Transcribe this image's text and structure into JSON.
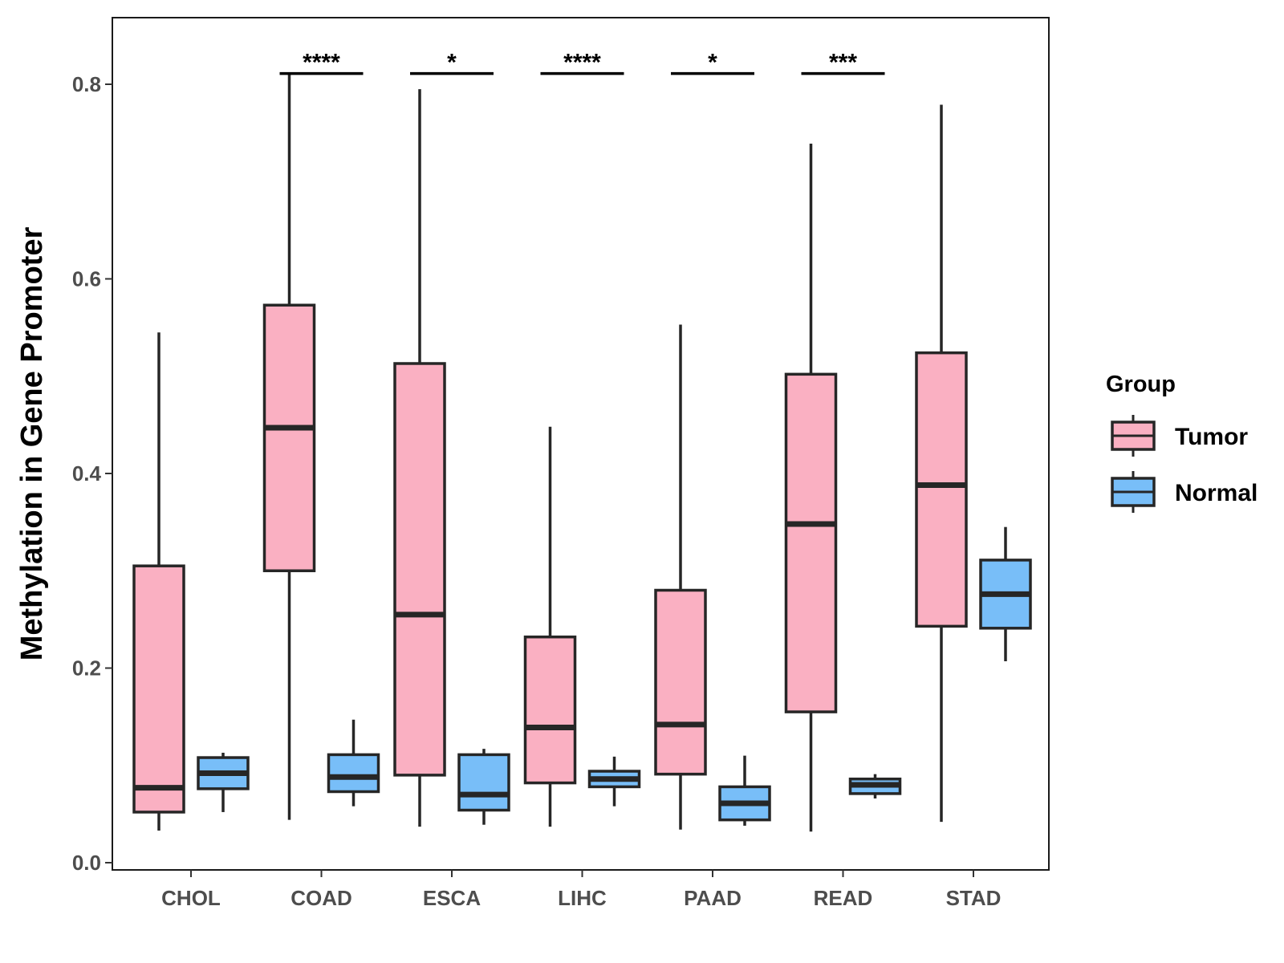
{
  "chart_data": {
    "type": "boxplot",
    "ylabel": "Methylation in Gene Promoter",
    "xlabel": "",
    "ylim": [
      0.0,
      0.86
    ],
    "yticks": [
      0.0,
      0.2,
      0.4,
      0.6,
      0.8
    ],
    "ytick_labels": [
      "0.0",
      "0.2",
      "0.4",
      "0.6",
      "0.8"
    ],
    "categories": [
      "CHOL",
      "COAD",
      "ESCA",
      "LIHC",
      "PAAD",
      "READ",
      "STAD"
    ],
    "legend": {
      "title": "Group",
      "position": "right",
      "entries": [
        "Tumor",
        "Normal"
      ]
    },
    "series": [
      {
        "name": "Tumor",
        "color": "#FAB0C2",
        "boxes": [
          {
            "min": 0.033,
            "q1": 0.052,
            "median": 0.077,
            "q3": 0.305,
            "max": 0.545
          },
          {
            "min": 0.044,
            "q1": 0.3,
            "median": 0.447,
            "q3": 0.573,
            "max": 0.81
          },
          {
            "min": 0.037,
            "q1": 0.09,
            "median": 0.255,
            "q3": 0.513,
            "max": 0.795
          },
          {
            "min": 0.037,
            "q1": 0.082,
            "median": 0.139,
            "q3": 0.232,
            "max": 0.448
          },
          {
            "min": 0.034,
            "q1": 0.091,
            "median": 0.142,
            "q3": 0.28,
            "max": 0.553
          },
          {
            "min": 0.032,
            "q1": 0.155,
            "median": 0.348,
            "q3": 0.502,
            "max": 0.739
          },
          {
            "min": 0.042,
            "q1": 0.243,
            "median": 0.388,
            "q3": 0.524,
            "max": 0.779
          }
        ]
      },
      {
        "name": "Normal",
        "color": "#78BEF8",
        "boxes": [
          {
            "min": 0.052,
            "q1": 0.076,
            "median": 0.092,
            "q3": 0.108,
            "max": 0.113
          },
          {
            "min": 0.058,
            "q1": 0.073,
            "median": 0.088,
            "q3": 0.111,
            "max": 0.147
          },
          {
            "min": 0.039,
            "q1": 0.054,
            "median": 0.07,
            "q3": 0.111,
            "max": 0.117
          },
          {
            "min": 0.058,
            "q1": 0.078,
            "median": 0.086,
            "q3": 0.094,
            "max": 0.109
          },
          {
            "min": 0.038,
            "q1": 0.044,
            "median": 0.061,
            "q3": 0.078,
            "max": 0.11
          },
          {
            "min": 0.066,
            "q1": 0.071,
            "median": 0.08,
            "q3": 0.086,
            "max": 0.091
          },
          {
            "min": 0.207,
            "q1": 0.241,
            "median": 0.276,
            "q3": 0.311,
            "max": 0.345
          }
        ]
      }
    ],
    "annotations": [
      {
        "category": "COAD",
        "label": "****",
        "y": 0.811
      },
      {
        "category": "ESCA",
        "label": "*",
        "y": 0.811
      },
      {
        "category": "LIHC",
        "label": "****",
        "y": 0.811
      },
      {
        "category": "PAAD",
        "label": "*",
        "y": 0.811
      },
      {
        "category": "READ",
        "label": "***",
        "y": 0.811
      }
    ]
  }
}
